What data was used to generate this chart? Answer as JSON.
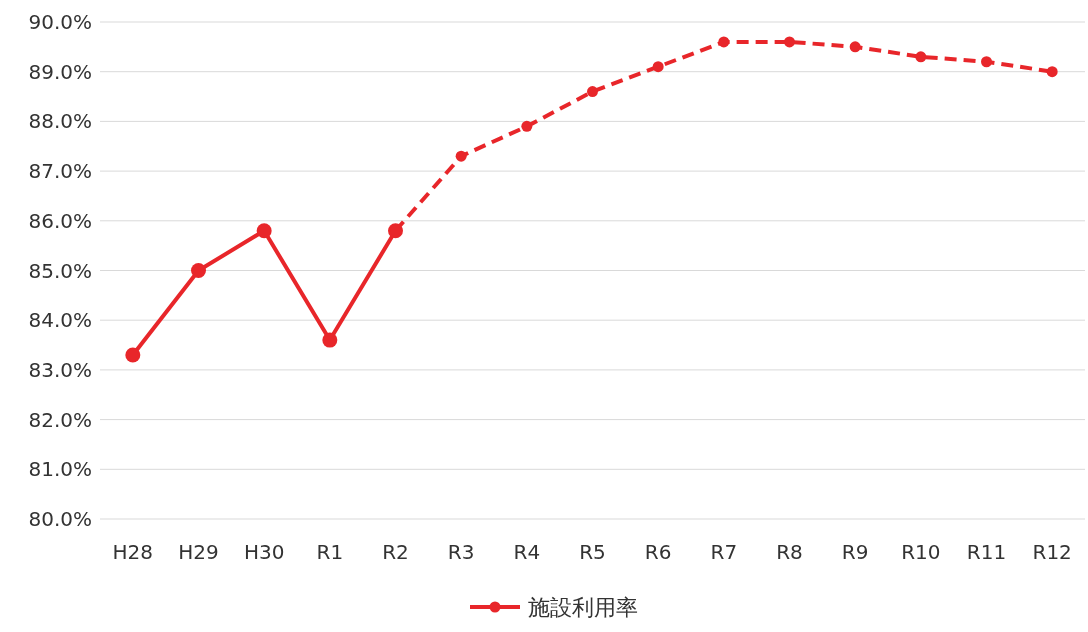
{
  "chart_data": {
    "type": "line",
    "categories": [
      "H28",
      "H29",
      "H30",
      "R1",
      "R2",
      "R3",
      "R4",
      "R5",
      "R6",
      "R7",
      "R8",
      "R9",
      "R10",
      "R11",
      "R12"
    ],
    "series": [
      {
        "name": "施設利用率",
        "color": "#e8262a",
        "line_style": "solid",
        "values": [
          83.3,
          85.0,
          85.8,
          83.6,
          85.8,
          null,
          null,
          null,
          null,
          null,
          null,
          null,
          null,
          null,
          null
        ]
      },
      {
        "color": "#e8262a",
        "line_style": "dashed",
        "values": [
          null,
          null,
          null,
          null,
          85.8,
          87.3,
          87.9,
          88.6,
          89.1,
          89.6,
          89.6,
          89.5,
          89.3,
          89.2,
          89.0
        ]
      }
    ],
    "ylim": [
      80,
      90
    ],
    "yticks": [
      {
        "value": 80,
        "label": "80.0%"
      },
      {
        "value": 81,
        "label": "81.0%"
      },
      {
        "value": 82,
        "label": "82.0%"
      },
      {
        "value": 83,
        "label": "83.0%"
      },
      {
        "value": 84,
        "label": "84.0%"
      },
      {
        "value": 85,
        "label": "85.0%"
      },
      {
        "value": 86,
        "label": "86.0%"
      },
      {
        "value": 87,
        "label": "87.0%"
      },
      {
        "value": 88,
        "label": "88.0%"
      },
      {
        "value": 89,
        "label": "89.0%"
      },
      {
        "value": 90,
        "label": "90.0%"
      }
    ],
    "grid": "y",
    "legend": "bottom",
    "marker": "circle"
  }
}
